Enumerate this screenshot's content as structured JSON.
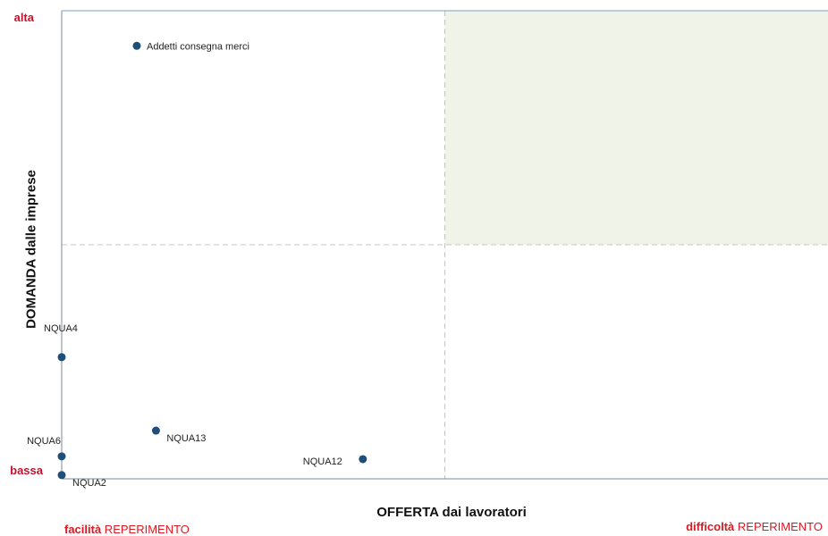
{
  "chart_data": {
    "type": "scatter",
    "xlabel": "OFFERTA dai lavoratori",
    "ylabel": "DOMANDA dalle imprese",
    "y_low_label": "bassa",
    "y_high_label": "alta",
    "x_low_label": {
      "bold": "facilità",
      "text": " REPERIMENTO"
    },
    "x_high_label": {
      "bold": "difficoltà",
      "text": " REPERIMENTO"
    },
    "xlim": [
      0,
      100
    ],
    "ylim": [
      0,
      100
    ],
    "quadrant_split": {
      "x": 50,
      "y": 50
    },
    "highlight_quadrant": "top-right",
    "highlight_color": "#f0f3e8",
    "point_color": "#1f4e79",
    "points": [
      {
        "label": "Addetti consegna merci",
        "x": 9.8,
        "y": 92.5,
        "label_pos": "right"
      },
      {
        "label": "NQUA4",
        "x": 0,
        "y": 26,
        "label_pos": "above"
      },
      {
        "label": "NQUA13",
        "x": 12.3,
        "y": 10.3,
        "label_pos": "right-below"
      },
      {
        "label": "NQUA6",
        "x": 0,
        "y": 4.8,
        "label_pos": "left-above"
      },
      {
        "label": "NQUA12",
        "x": 39.3,
        "y": 4.2,
        "label_pos": "left"
      },
      {
        "label": "NQUA2",
        "x": 0,
        "y": 0.8,
        "label_pos": "right-below"
      }
    ]
  }
}
